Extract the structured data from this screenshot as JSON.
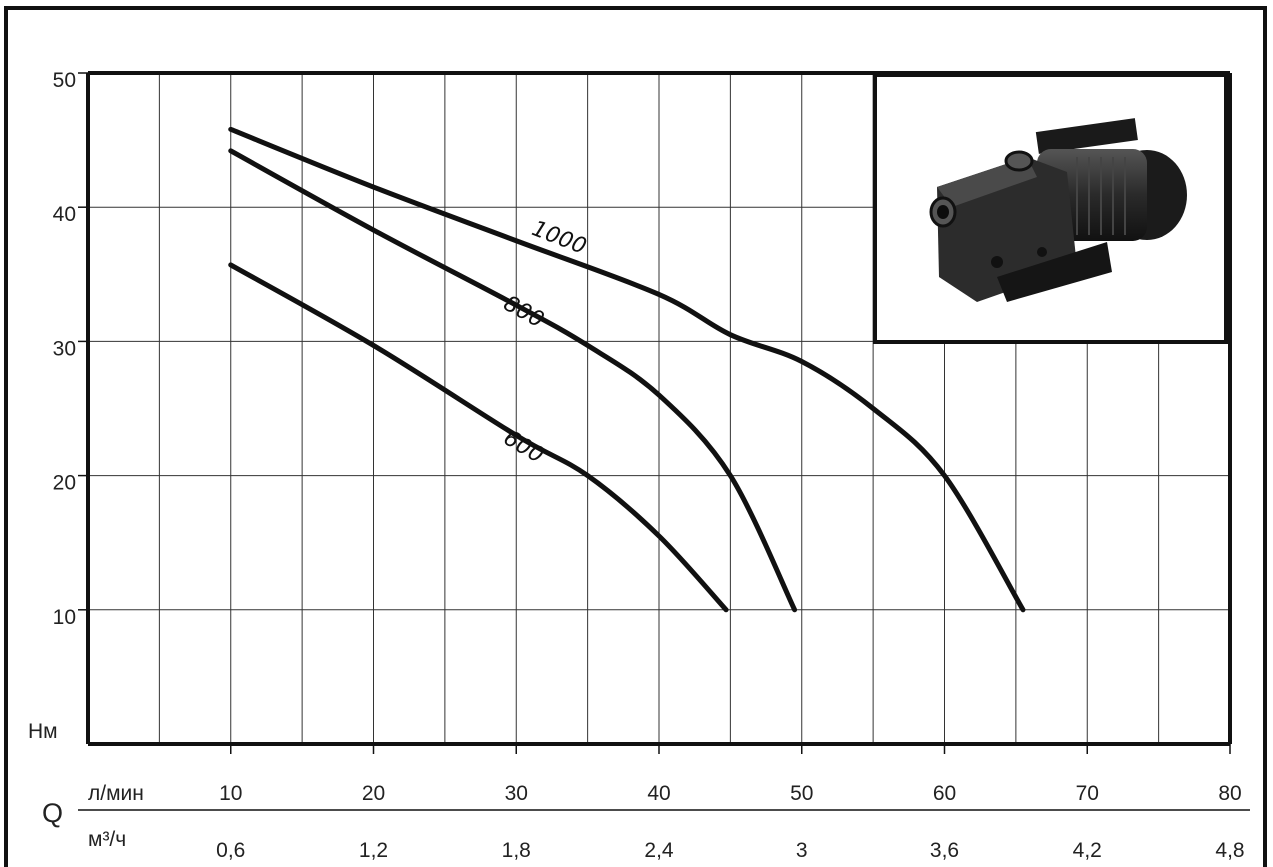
{
  "chart_data": {
    "type": "line",
    "x_unit_label": "л/мин",
    "x2_unit_label": "м³/ч",
    "x_axis_symbol": "Q",
    "y_axis_label": "Нм",
    "xlim": [
      0,
      80
    ],
    "ylim": [
      0,
      50
    ],
    "x_ticks": [
      "10",
      "20",
      "30",
      "40",
      "50",
      "60",
      "70",
      "80"
    ],
    "x_tick_values": [
      10,
      20,
      30,
      40,
      50,
      60,
      70,
      80
    ],
    "x2_ticks": [
      "0,6",
      "1,2",
      "1,8",
      "2,4",
      "3",
      "3,6",
      "4,2",
      "4,8"
    ],
    "y_ticks": [
      "10",
      "20",
      "30",
      "40",
      "50"
    ],
    "y_tick_values": [
      10,
      20,
      30,
      40,
      50
    ],
    "grid": true,
    "series": [
      {
        "name": "1000",
        "x": [
          10,
          20,
          30,
          40,
          45,
          50,
          55,
          60,
          65.5
        ],
        "y": [
          45.8,
          41.5,
          37.5,
          33.5,
          30.5,
          28.5,
          25,
          20,
          10
        ],
        "label_at": [
          31,
          38
        ]
      },
      {
        "name": "800",
        "x": [
          10,
          20,
          30,
          35,
          40,
          45,
          49.5
        ],
        "y": [
          44.2,
          38.3,
          32.7,
          29.7,
          26,
          20,
          10
        ],
        "label_at": [
          29,
          32.5
        ]
      },
      {
        "name": "600",
        "x": [
          10,
          20,
          30,
          35,
          40,
          44.7
        ],
        "y": [
          35.7,
          29.7,
          23,
          20,
          15.5,
          10
        ],
        "label_at": [
          29,
          22.5
        ]
      }
    ]
  },
  "product_image": {
    "subject": "jet-pump-photo"
  }
}
